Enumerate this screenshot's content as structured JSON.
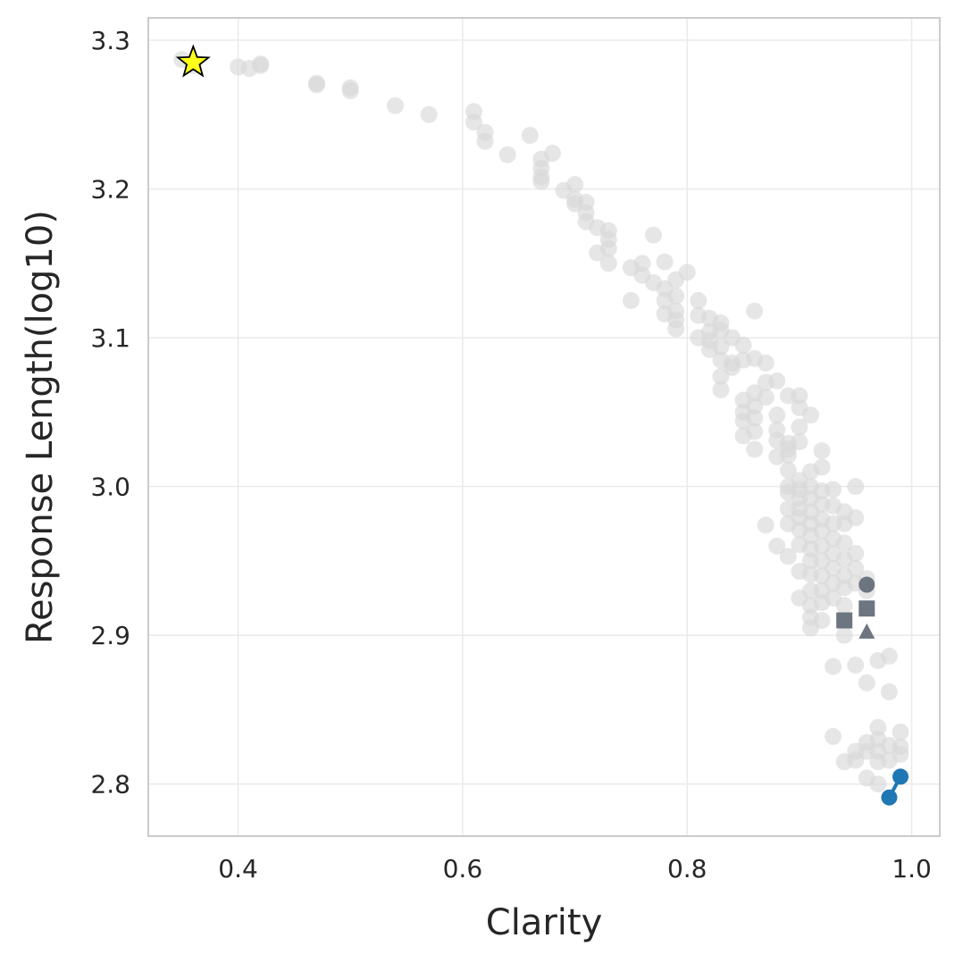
{
  "chart_data": {
    "type": "scatter",
    "xlabel": "Clarity",
    "ylabel": "Response Length(log10)",
    "xlim": [
      0.32,
      1.025
    ],
    "ylim": [
      2.765,
      3.315
    ],
    "xticks": [
      0.4,
      0.6,
      0.8,
      1.0
    ],
    "xtick_labels": [
      "0.4",
      "0.6",
      "0.8",
      "1.0"
    ],
    "yticks": [
      2.8,
      2.9,
      3.0,
      3.1,
      3.2,
      3.3
    ],
    "ytick_labels": [
      "2.8",
      "2.9",
      "3.0",
      "3.1",
      "3.2",
      "3.3"
    ],
    "grid": true,
    "colors": {
      "background_points": "#d9d9d9",
      "highlight_gray": "#6c7580",
      "highlight_blue": "#1f77b4",
      "star_fill": "#ffff1a",
      "star_edge": "#000000"
    },
    "series": [
      {
        "marker": "circle",
        "color": "#d9d9d9",
        "points": [
          [
            0.35,
            3.287
          ],
          [
            0.36,
            3.283
          ],
          [
            0.4,
            3.282
          ],
          [
            0.41,
            3.281
          ],
          [
            0.42,
            3.284
          ],
          [
            0.42,
            3.283
          ],
          [
            0.47,
            3.271
          ],
          [
            0.47,
            3.27
          ],
          [
            0.5,
            3.268
          ],
          [
            0.5,
            3.266
          ],
          [
            0.54,
            3.256
          ],
          [
            0.57,
            3.25
          ],
          [
            0.61,
            3.252
          ],
          [
            0.61,
            3.245
          ],
          [
            0.62,
            3.238
          ],
          [
            0.62,
            3.232
          ],
          [
            0.64,
            3.223
          ],
          [
            0.66,
            3.236
          ],
          [
            0.67,
            3.22
          ],
          [
            0.67,
            3.214
          ],
          [
            0.67,
            3.208
          ],
          [
            0.67,
            3.205
          ],
          [
            0.68,
            3.224
          ],
          [
            0.69,
            3.199
          ],
          [
            0.7,
            3.203
          ],
          [
            0.7,
            3.193
          ],
          [
            0.7,
            3.19
          ],
          [
            0.71,
            3.191
          ],
          [
            0.71,
            3.184
          ],
          [
            0.71,
            3.178
          ],
          [
            0.72,
            3.174
          ],
          [
            0.72,
            3.157
          ],
          [
            0.73,
            3.172
          ],
          [
            0.73,
            3.166
          ],
          [
            0.73,
            3.16
          ],
          [
            0.73,
            3.15
          ],
          [
            0.75,
            3.147
          ],
          [
            0.75,
            3.125
          ],
          [
            0.76,
            3.15
          ],
          [
            0.76,
            3.142
          ],
          [
            0.77,
            3.169
          ],
          [
            0.77,
            3.137
          ],
          [
            0.78,
            3.151
          ],
          [
            0.78,
            3.133
          ],
          [
            0.78,
            3.125
          ],
          [
            0.78,
            3.116
          ],
          [
            0.79,
            3.139
          ],
          [
            0.79,
            3.128
          ],
          [
            0.79,
            3.118
          ],
          [
            0.79,
            3.112
          ],
          [
            0.79,
            3.106
          ],
          [
            0.8,
            3.144
          ],
          [
            0.81,
            3.125
          ],
          [
            0.81,
            3.115
          ],
          [
            0.81,
            3.1
          ],
          [
            0.82,
            3.113
          ],
          [
            0.82,
            3.104
          ],
          [
            0.82,
            3.098
          ],
          [
            0.82,
            3.092
          ],
          [
            0.83,
            3.11
          ],
          [
            0.83,
            3.105
          ],
          [
            0.83,
            3.094
          ],
          [
            0.83,
            3.085
          ],
          [
            0.83,
            3.074
          ],
          [
            0.83,
            3.065
          ],
          [
            0.84,
            3.1
          ],
          [
            0.84,
            3.083
          ],
          [
            0.84,
            3.08
          ],
          [
            0.85,
            3.095
          ],
          [
            0.85,
            3.085
          ],
          [
            0.85,
            3.058
          ],
          [
            0.85,
            3.05
          ],
          [
            0.85,
            3.044
          ],
          [
            0.85,
            3.034
          ],
          [
            0.86,
            3.118
          ],
          [
            0.86,
            3.086
          ],
          [
            0.86,
            3.063
          ],
          [
            0.86,
            3.054
          ],
          [
            0.86,
            3.046
          ],
          [
            0.86,
            3.037
          ],
          [
            0.86,
            3.025
          ],
          [
            0.87,
            3.083
          ],
          [
            0.87,
            3.07
          ],
          [
            0.87,
            3.06
          ],
          [
            0.87,
            2.974
          ],
          [
            0.88,
            3.071
          ],
          [
            0.88,
            3.048
          ],
          [
            0.88,
            3.038
          ],
          [
            0.88,
            3.031
          ],
          [
            0.88,
            3.02
          ],
          [
            0.88,
            2.96
          ],
          [
            0.89,
            3.061
          ],
          [
            0.89,
            3.029
          ],
          [
            0.89,
            3.025
          ],
          [
            0.89,
            3.021
          ],
          [
            0.89,
            3.011
          ],
          [
            0.89,
            3.0
          ],
          [
            0.89,
            2.996
          ],
          [
            0.89,
            2.985
          ],
          [
            0.89,
            2.975
          ],
          [
            0.89,
            2.953
          ],
          [
            0.9,
            3.061
          ],
          [
            0.9,
            3.053
          ],
          [
            0.9,
            3.04
          ],
          [
            0.9,
            3.03
          ],
          [
            0.9,
            3.004
          ],
          [
            0.9,
            2.998
          ],
          [
            0.9,
            2.992
          ],
          [
            0.9,
            2.985
          ],
          [
            0.9,
            2.979
          ],
          [
            0.9,
            2.971
          ],
          [
            0.9,
            2.961
          ],
          [
            0.9,
            2.943
          ],
          [
            0.9,
            2.925
          ],
          [
            0.91,
            3.048
          ],
          [
            0.91,
            3.01
          ],
          [
            0.91,
            3.0
          ],
          [
            0.91,
            2.992
          ],
          [
            0.91,
            2.983
          ],
          [
            0.91,
            2.975
          ],
          [
            0.91,
            2.967
          ],
          [
            0.91,
            2.958
          ],
          [
            0.91,
            2.95
          ],
          [
            0.91,
            2.941
          ],
          [
            0.91,
            2.93
          ],
          [
            0.91,
            2.92
          ],
          [
            0.91,
            2.912
          ],
          [
            0.91,
            2.905
          ],
          [
            0.92,
            3.024
          ],
          [
            0.92,
            3.013
          ],
          [
            0.92,
            2.997
          ],
          [
            0.92,
            2.988
          ],
          [
            0.92,
            2.978
          ],
          [
            0.92,
            2.97
          ],
          [
            0.92,
            2.96
          ],
          [
            0.92,
            2.95
          ],
          [
            0.92,
            2.94
          ],
          [
            0.92,
            2.93
          ],
          [
            0.92,
            2.922
          ],
          [
            0.92,
            2.91
          ],
          [
            0.93,
            2.998
          ],
          [
            0.93,
            2.987
          ],
          [
            0.93,
            2.975
          ],
          [
            0.93,
            2.965
          ],
          [
            0.93,
            2.955
          ],
          [
            0.93,
            2.945
          ],
          [
            0.93,
            2.935
          ],
          [
            0.93,
            2.925
          ],
          [
            0.93,
            2.879
          ],
          [
            0.93,
            2.832
          ],
          [
            0.94,
            2.983
          ],
          [
            0.94,
            2.975
          ],
          [
            0.94,
            2.962
          ],
          [
            0.94,
            2.951
          ],
          [
            0.94,
            2.94
          ],
          [
            0.94,
            2.932
          ],
          [
            0.94,
            2.92
          ],
          [
            0.94,
            2.9
          ],
          [
            0.94,
            2.815
          ],
          [
            0.95,
            3.0
          ],
          [
            0.95,
            2.979
          ],
          [
            0.95,
            2.955
          ],
          [
            0.95,
            2.945
          ],
          [
            0.95,
            2.935
          ],
          [
            0.95,
            2.88
          ],
          [
            0.95,
            2.822
          ],
          [
            0.95,
            2.816
          ],
          [
            0.96,
            2.938
          ],
          [
            0.96,
            2.93
          ],
          [
            0.96,
            2.868
          ],
          [
            0.96,
            2.828
          ],
          [
            0.96,
            2.822
          ],
          [
            0.96,
            2.804
          ],
          [
            0.97,
            2.883
          ],
          [
            0.97,
            2.838
          ],
          [
            0.97,
            2.83
          ],
          [
            0.97,
            2.822
          ],
          [
            0.97,
            2.815
          ],
          [
            0.97,
            2.8
          ],
          [
            0.98,
            2.886
          ],
          [
            0.98,
            2.862
          ],
          [
            0.98,
            2.826
          ],
          [
            0.98,
            2.816
          ],
          [
            0.99,
            2.835
          ],
          [
            0.99,
            2.825
          ],
          [
            0.99,
            2.82
          ]
        ]
      },
      {
        "marker": "circle",
        "color": "#6c7580",
        "points": [
          [
            0.96,
            2.934
          ]
        ]
      },
      {
        "marker": "square",
        "color": "#6c7580",
        "points": [
          [
            0.94,
            2.91
          ],
          [
            0.96,
            2.918
          ]
        ]
      },
      {
        "marker": "triangle",
        "color": "#6c7580",
        "points": [
          [
            0.96,
            2.902
          ]
        ]
      },
      {
        "marker": "circle",
        "color": "#1f77b4",
        "connected": true,
        "points": [
          [
            0.98,
            2.791
          ],
          [
            0.99,
            2.805
          ]
        ]
      },
      {
        "marker": "star",
        "color": "#ffff1a",
        "points": [
          [
            0.36,
            3.285
          ]
        ]
      }
    ]
  }
}
